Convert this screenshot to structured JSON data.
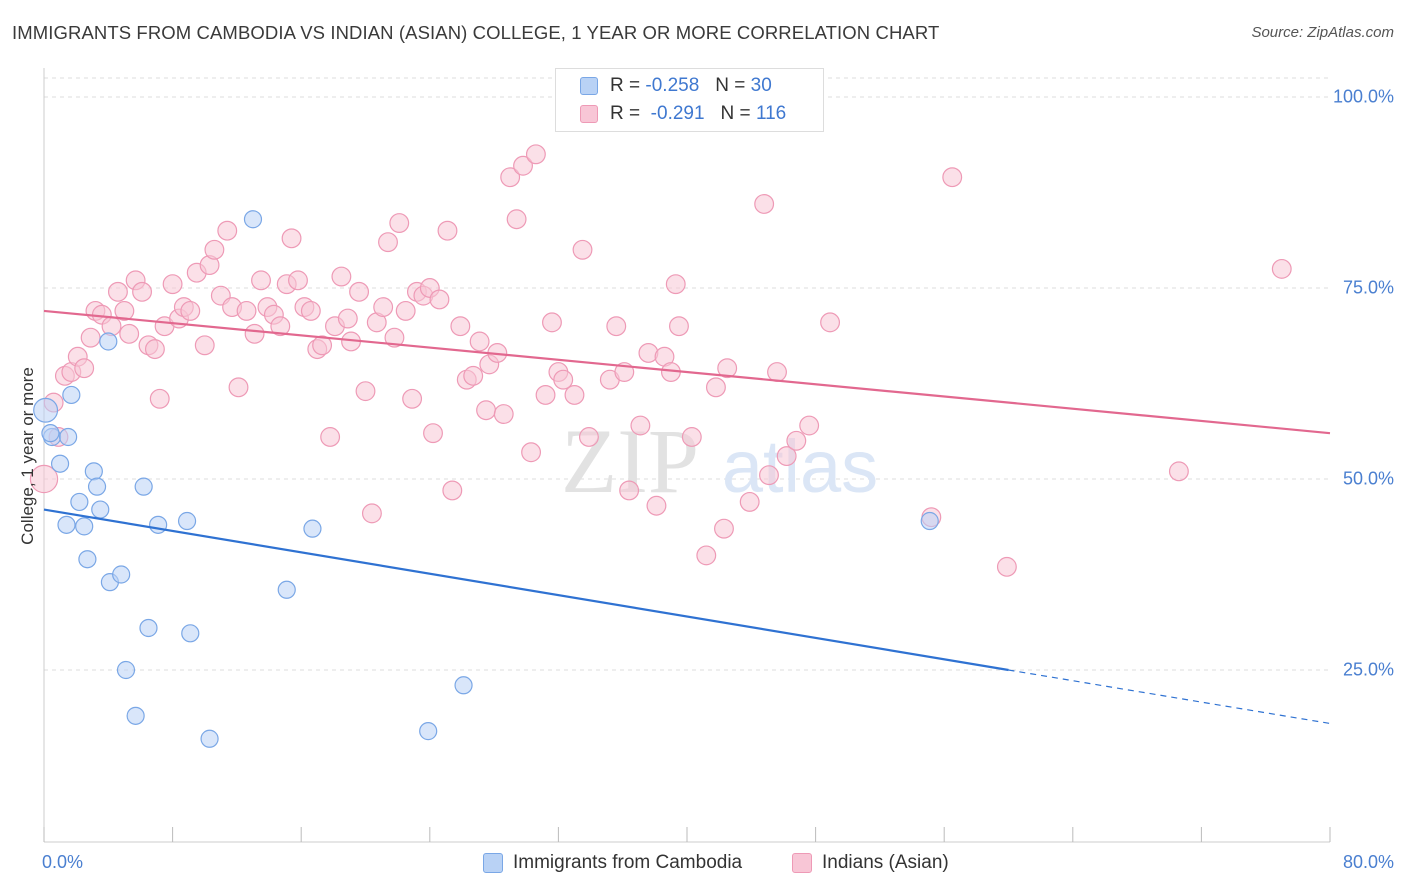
{
  "title": "IMMIGRANTS FROM CAMBODIA VS INDIAN (ASIAN) COLLEGE, 1 YEAR OR MORE CORRELATION CHART",
  "source": "Source: ZipAtlas.com",
  "watermark": {
    "zip": "ZIP",
    "atlas": "atlas"
  },
  "legend": {
    "r_label": "R =",
    "n_label": "N =",
    "series": [
      {
        "name": "Immigrants from Cambodia",
        "r": "-0.258",
        "n": "30"
      },
      {
        "name": "Indians (Asian)",
        "r": "-0.291",
        "n": "116"
      }
    ]
  },
  "chart_data": {
    "type": "scatter",
    "title": "IMMIGRANTS FROM CAMBODIA VS INDIAN (ASIAN) COLLEGE, 1 YEAR OR MORE CORRELATION CHART",
    "xlabel": "",
    "ylabel": "College, 1 year or more",
    "xlim": [
      0,
      80
    ],
    "ylim": [
      5,
      105
    ],
    "x_tick_labels": [
      "0.0%",
      "80.0%"
    ],
    "y_ticks": [
      25,
      50,
      75,
      100
    ],
    "y_tick_labels": [
      "25.0%",
      "50.0%",
      "75.0%",
      "100.0%"
    ],
    "colors": {
      "cambodia_fill": "#b9d2f5",
      "cambodia_stroke": "#7aa7e6",
      "cambodia_line": "#2f72d2",
      "indian_fill": "#f8c6d6",
      "indian_stroke": "#ee9ab6",
      "indian_line": "#e2688f",
      "tick_label": "#4a7fd0",
      "grid": "#dddddd"
    },
    "series": [
      {
        "name": "Immigrants from Cambodia",
        "r": -0.258,
        "n": 30,
        "trend": {
          "x0": 0,
          "y0": 46.0,
          "x1": 60,
          "y1": 25.0,
          "x_dash_end": 80,
          "y_dash_end": 18.0
        },
        "points": [
          [
            0.1,
            59.0,
            1.4
          ],
          [
            0.5,
            55.5,
            1.0
          ],
          [
            1.0,
            52.0,
            1.0
          ],
          [
            1.5,
            55.5,
            1.0
          ],
          [
            1.7,
            61.0,
            1.0
          ],
          [
            2.2,
            47.0,
            1.0
          ],
          [
            1.4,
            44.0,
            1.0
          ],
          [
            2.5,
            43.8,
            1.0
          ],
          [
            3.1,
            51.0,
            1.0
          ],
          [
            3.3,
            49.0,
            1.0
          ],
          [
            3.5,
            46.0,
            1.0
          ],
          [
            4.0,
            68.0,
            1.0
          ],
          [
            2.7,
            39.5,
            1.0
          ],
          [
            4.1,
            36.5,
            1.0
          ],
          [
            4.8,
            37.5,
            1.0
          ],
          [
            5.1,
            25.0,
            1.0
          ],
          [
            5.7,
            19.0,
            1.0
          ],
          [
            6.2,
            49.0,
            1.0
          ],
          [
            6.5,
            30.5,
            1.0
          ],
          [
            7.1,
            44.0,
            1.0
          ],
          [
            8.9,
            44.5,
            1.0
          ],
          [
            9.1,
            29.8,
            1.0
          ],
          [
            10.3,
            16.0,
            1.0
          ],
          [
            13.0,
            84.0,
            1.0
          ],
          [
            15.1,
            35.5,
            1.0
          ],
          [
            16.7,
            43.5,
            1.0
          ],
          [
            23.9,
            17.0,
            1.0
          ],
          [
            26.1,
            23.0,
            1.0
          ],
          [
            55.1,
            44.5,
            1.0
          ],
          [
            0.4,
            56.0,
            1.0
          ]
        ]
      },
      {
        "name": "Indians (Asian)",
        "r": -0.291,
        "n": 116,
        "trend": {
          "x0": 0,
          "y0": 72.0,
          "x1": 80,
          "y1": 56.0
        },
        "points": [
          [
            0.0,
            50.0,
            1.6
          ],
          [
            0.6,
            60.0,
            1.1
          ],
          [
            0.9,
            55.5,
            1.1
          ],
          [
            1.3,
            63.5,
            1.1
          ],
          [
            1.7,
            64.0,
            1.1
          ],
          [
            2.1,
            66.0,
            1.1
          ],
          [
            2.5,
            64.5,
            1.1
          ],
          [
            2.9,
            68.5,
            1.1
          ],
          [
            3.2,
            72.0,
            1.1
          ],
          [
            3.6,
            71.5,
            1.1
          ],
          [
            4.2,
            70.0,
            1.1
          ],
          [
            4.6,
            74.5,
            1.1
          ],
          [
            5.0,
            72.0,
            1.1
          ],
          [
            5.3,
            69.0,
            1.1
          ],
          [
            5.7,
            76.0,
            1.1
          ],
          [
            6.1,
            74.5,
            1.1
          ],
          [
            6.5,
            67.5,
            1.1
          ],
          [
            6.9,
            67.0,
            1.1
          ],
          [
            7.2,
            60.5,
            1.1
          ],
          [
            7.5,
            70.0,
            1.1
          ],
          [
            8.0,
            75.5,
            1.1
          ],
          [
            8.4,
            71.0,
            1.1
          ],
          [
            8.7,
            72.5,
            1.1
          ],
          [
            9.1,
            72.0,
            1.1
          ],
          [
            9.5,
            77.0,
            1.1
          ],
          [
            10.0,
            67.5,
            1.1
          ],
          [
            10.3,
            78.0,
            1.1
          ],
          [
            10.6,
            80.0,
            1.1
          ],
          [
            11.0,
            74.0,
            1.1
          ],
          [
            11.4,
            82.5,
            1.1
          ],
          [
            11.7,
            72.5,
            1.1
          ],
          [
            12.1,
            62.0,
            1.1
          ],
          [
            12.6,
            72.0,
            1.1
          ],
          [
            13.1,
            69.0,
            1.1
          ],
          [
            13.5,
            76.0,
            1.1
          ],
          [
            13.9,
            72.5,
            1.1
          ],
          [
            14.3,
            71.5,
            1.1
          ],
          [
            14.7,
            70.0,
            1.1
          ],
          [
            15.1,
            75.5,
            1.1
          ],
          [
            15.4,
            81.5,
            1.1
          ],
          [
            15.8,
            76.0,
            1.1
          ],
          [
            16.2,
            72.5,
            1.1
          ],
          [
            16.6,
            72.0,
            1.1
          ],
          [
            17.0,
            67.0,
            1.1
          ],
          [
            17.3,
            67.5,
            1.1
          ],
          [
            17.8,
            55.5,
            1.1
          ],
          [
            18.1,
            70.0,
            1.1
          ],
          [
            18.5,
            76.5,
            1.1
          ],
          [
            18.9,
            71.0,
            1.1
          ],
          [
            19.1,
            68.0,
            1.1
          ],
          [
            19.6,
            74.5,
            1.1
          ],
          [
            20.0,
            61.5,
            1.1
          ],
          [
            20.4,
            45.5,
            1.1
          ],
          [
            20.7,
            70.5,
            1.1
          ],
          [
            21.1,
            72.5,
            1.1
          ],
          [
            21.4,
            81.0,
            1.1
          ],
          [
            21.8,
            68.5,
            1.1
          ],
          [
            22.1,
            83.5,
            1.1
          ],
          [
            22.5,
            72.0,
            1.1
          ],
          [
            22.9,
            60.5,
            1.1
          ],
          [
            23.2,
            74.5,
            1.1
          ],
          [
            23.6,
            74.0,
            1.1
          ],
          [
            24.0,
            75.0,
            1.1
          ],
          [
            24.2,
            56.0,
            1.1
          ],
          [
            24.6,
            73.5,
            1.1
          ],
          [
            25.1,
            82.5,
            1.1
          ],
          [
            25.4,
            48.5,
            1.1
          ],
          [
            25.9,
            70.0,
            1.1
          ],
          [
            26.3,
            63.0,
            1.1
          ],
          [
            26.7,
            63.5,
            1.1
          ],
          [
            27.1,
            68.0,
            1.1
          ],
          [
            27.5,
            59.0,
            1.1
          ],
          [
            27.7,
            65.0,
            1.1
          ],
          [
            28.2,
            66.5,
            1.1
          ],
          [
            28.6,
            58.5,
            1.1
          ],
          [
            29.0,
            89.5,
            1.1
          ],
          [
            29.4,
            84.0,
            1.1
          ],
          [
            29.8,
            91.0,
            1.1
          ],
          [
            30.3,
            53.5,
            1.1
          ],
          [
            30.6,
            92.5,
            1.1
          ],
          [
            31.2,
            61.0,
            1.1
          ],
          [
            31.6,
            70.5,
            1.1
          ],
          [
            32.0,
            64.0,
            1.1
          ],
          [
            32.3,
            63.0,
            1.1
          ],
          [
            33.0,
            61.0,
            1.1
          ],
          [
            33.5,
            80.0,
            1.1
          ],
          [
            33.9,
            55.5,
            1.1
          ],
          [
            35.2,
            63.0,
            1.1
          ],
          [
            35.6,
            70.0,
            1.1
          ],
          [
            36.1,
            64.0,
            1.1
          ],
          [
            36.4,
            48.5,
            1.1
          ],
          [
            37.1,
            57.0,
            1.1
          ],
          [
            37.6,
            66.5,
            1.1
          ],
          [
            38.1,
            46.5,
            1.1
          ],
          [
            38.6,
            66.0,
            1.1
          ],
          [
            39.0,
            64.0,
            1.1
          ],
          [
            39.3,
            75.5,
            1.1
          ],
          [
            39.5,
            70.0,
            1.1
          ],
          [
            40.3,
            55.5,
            1.1
          ],
          [
            41.2,
            40.0,
            1.1
          ],
          [
            41.8,
            62.0,
            1.1
          ],
          [
            42.3,
            43.5,
            1.1
          ],
          [
            42.5,
            64.5,
            1.1
          ],
          [
            43.9,
            47.0,
            1.1
          ],
          [
            44.8,
            86.0,
            1.1
          ],
          [
            45.1,
            50.5,
            1.1
          ],
          [
            45.6,
            64.0,
            1.1
          ],
          [
            46.2,
            53.0,
            1.1
          ],
          [
            46.8,
            55.0,
            1.1
          ],
          [
            47.6,
            57.0,
            1.1
          ],
          [
            48.9,
            70.5,
            1.1
          ],
          [
            55.2,
            45.0,
            1.1
          ],
          [
            56.5,
            89.5,
            1.1
          ],
          [
            59.9,
            38.5,
            1.1
          ],
          [
            70.6,
            51.0,
            1.1
          ],
          [
            77.0,
            77.5,
            1.1
          ]
        ]
      }
    ]
  }
}
